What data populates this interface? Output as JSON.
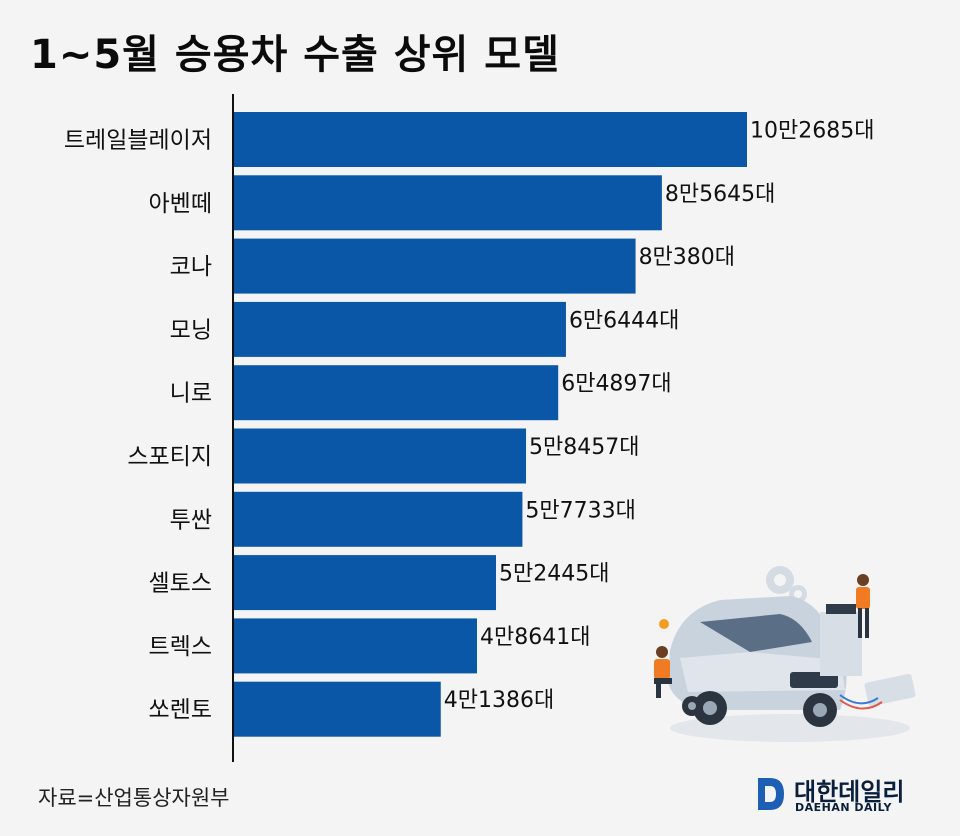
{
  "title": "1~5월 승용차 수출 상위 모델",
  "source": "자료=산업통상자원부",
  "logo": {
    "name": "대한데일리",
    "sub": "DAEHAN DAILY"
  },
  "colors": {
    "bar": "#0a57a8",
    "axis": "#111111",
    "background": "#f4f4f4"
  },
  "chart_data": {
    "type": "bar",
    "orientation": "horizontal",
    "categories": [
      "트레일블레이저",
      "아벤떼",
      "코나",
      "모닝",
      "니로",
      "스포티지",
      "투싼",
      "셀토스",
      "트렉스",
      "쏘렌토"
    ],
    "values": [
      102685,
      85645,
      80380,
      66444,
      64897,
      58457,
      57733,
      52445,
      48641,
      41386
    ],
    "data_labels": [
      "10만2685대",
      "8만5645대",
      "8만380대",
      "6만6444대",
      "6만4897대",
      "5만8457대",
      "5만7733대",
      "5만2445대",
      "4만8641대",
      "4만1386대"
    ],
    "title": "1~5월 승용차 수출 상위 모델",
    "xlabel": "",
    "ylabel": "",
    "xlim": [
      0,
      102685
    ],
    "grid": false,
    "legend": "none"
  }
}
